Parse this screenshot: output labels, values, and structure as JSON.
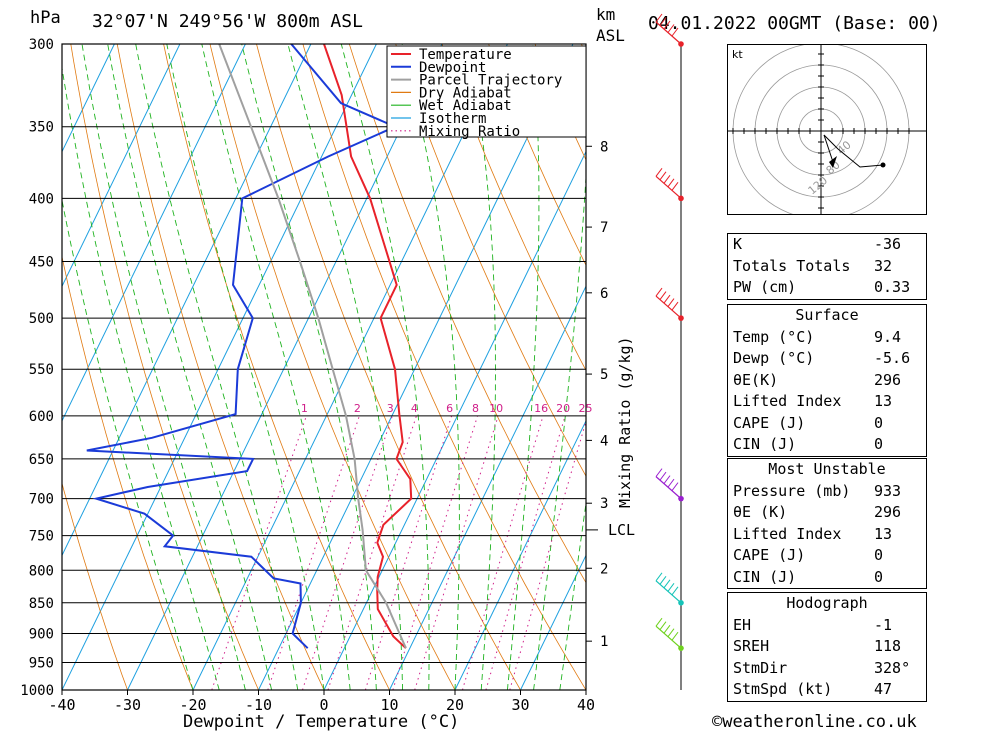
{
  "header": {
    "location": "32°07'N  249°56'W  800m  ASL",
    "datetime": "04.01.2022  00GMT  (Base: 00)",
    "hpa_unit": "hPa",
    "km_unit": "km",
    "asl_unit": "ASL"
  },
  "chart_data": {
    "type": "line",
    "title": "Skew-T log-P sounding",
    "xlabel": "Dewpoint / Temperature (°C)",
    "ylabel": "hPa",
    "mixing_ratio_label": "Mixing Ratio (g/kg)",
    "xlim": [
      -40,
      40
    ],
    "ylim": [
      1000,
      300
    ],
    "x_ticks": [
      "-40",
      "-30",
      "-20",
      "-10",
      "0",
      "10",
      "20",
      "30",
      "40"
    ],
    "x_tick_values": [
      -40,
      -30,
      -20,
      -10,
      0,
      10,
      20,
      30,
      40
    ],
    "pressure_levels": [
      300,
      350,
      400,
      450,
      500,
      550,
      600,
      650,
      700,
      750,
      800,
      850,
      900,
      950,
      1000
    ],
    "km_ticks": [
      {
        "label": "1",
        "p": 913
      },
      {
        "label": "2",
        "p": 797
      },
      {
        "label": "3",
        "p": 706
      },
      {
        "label": "4",
        "p": 628
      },
      {
        "label": "5",
        "p": 555
      },
      {
        "label": "6",
        "p": 477
      },
      {
        "label": "7",
        "p": 422
      },
      {
        "label": "8",
        "p": 363
      }
    ],
    "lcl": {
      "label": "LCL",
      "p": 742
    },
    "mixing_ratio_values": [
      "1",
      "2",
      "3",
      "4",
      "6",
      "8",
      "10",
      "16",
      "20",
      "25"
    ],
    "legend": [
      "Temperature",
      "Dewpoint",
      "Parcel Trajectory",
      "Dry Adiabat",
      "Wet Adiabat",
      "Isotherm",
      "Mixing Ratio"
    ],
    "legend_position": "top-right",
    "series": [
      {
        "name": "Temperature",
        "color": "#e8222a",
        "points": [
          [
            925,
            9.4
          ],
          [
            905,
            6.6
          ],
          [
            860,
            2.2
          ],
          [
            830,
            0.7
          ],
          [
            810,
            -0.2
          ],
          [
            780,
            -0.9
          ],
          [
            760,
            -2.8
          ],
          [
            735,
            -3.2
          ],
          [
            700,
            -0.9
          ],
          [
            675,
            -2.5
          ],
          [
            650,
            -6.1
          ],
          [
            630,
            -6.4
          ],
          [
            598,
            -9.0
          ],
          [
            550,
            -13.0
          ],
          [
            500,
            -19.0
          ],
          [
            470,
            -19.0
          ],
          [
            400,
            -29.5
          ],
          [
            370,
            -35.5
          ],
          [
            330,
            -41.5
          ],
          [
            300,
            -48.0
          ]
        ]
      },
      {
        "name": "Dewpoint",
        "color": "#1b3bd8",
        "points": [
          [
            925,
            -5.6
          ],
          [
            900,
            -9.0
          ],
          [
            850,
            -10.0
          ],
          [
            820,
            -11.5
          ],
          [
            812,
            -16.0
          ],
          [
            780,
            -21.0
          ],
          [
            765,
            -35.0
          ],
          [
            750,
            -34.5
          ],
          [
            720,
            -40.5
          ],
          [
            700,
            -49.0
          ],
          [
            685,
            -42.0
          ],
          [
            665,
            -28.0
          ],
          [
            650,
            -28.0
          ],
          [
            640,
            -54.0
          ],
          [
            625,
            -45.0
          ],
          [
            598,
            -34.0
          ],
          [
            550,
            -37.0
          ],
          [
            500,
            -38.5
          ],
          [
            470,
            -44.0
          ],
          [
            400,
            -49.0
          ],
          [
            370,
            -39.0
          ],
          [
            350,
            -31.0
          ],
          [
            335,
            -41.0
          ],
          [
            300,
            -53.0
          ]
        ]
      },
      {
        "name": "Parcel Trajectory",
        "color": "#a0a0a0",
        "points": [
          [
            925,
            9.4
          ],
          [
            850,
            3.0
          ],
          [
            800,
            -2.5
          ],
          [
            742,
            -6.0
          ],
          [
            700,
            -9.0
          ],
          [
            650,
            -12.5
          ],
          [
            600,
            -17.0
          ],
          [
            550,
            -22.5
          ],
          [
            500,
            -28.5
          ],
          [
            450,
            -35.5
          ],
          [
            400,
            -43.5
          ],
          [
            350,
            -53.0
          ],
          [
            300,
            -64.0
          ]
        ]
      }
    ],
    "wind_barbs": [
      {
        "p": 300,
        "color": "#e8222a"
      },
      {
        "p": 400,
        "color": "#e8222a"
      },
      {
        "p": 500,
        "color": "#e8222a"
      },
      {
        "p": 700,
        "color": "#9a1fd0"
      },
      {
        "p": 850,
        "color": "#15c3b8"
      },
      {
        "p": 925,
        "color": "#6fd21e"
      }
    ],
    "hodograph": {
      "unit": "kt",
      "ring_labels": [
        "40",
        "80",
        "120"
      ]
    }
  },
  "indices": [
    {
      "label": "K",
      "value": "-36"
    },
    {
      "label": "Totals Totals",
      "value": "32"
    },
    {
      "label": "PW (cm)",
      "value": "0.33"
    }
  ],
  "surface": {
    "title": "Surface",
    "rows": [
      {
        "label": "Temp (°C)",
        "value": "9.4"
      },
      {
        "label": "Dewp (°C)",
        "value": "-5.6"
      },
      {
        "label": "θE(K)",
        "value": "296"
      },
      {
        "label": "Lifted Index",
        "value": "13"
      },
      {
        "label": "CAPE (J)",
        "value": "0"
      },
      {
        "label": "CIN (J)",
        "value": "0"
      }
    ]
  },
  "most_unstable": {
    "title": "Most Unstable",
    "rows": [
      {
        "label": "Pressure (mb)",
        "value": "933"
      },
      {
        "label": "θE (K)",
        "value": "296"
      },
      {
        "label": "Lifted Index",
        "value": "13"
      },
      {
        "label": "CAPE (J)",
        "value": "0"
      },
      {
        "label": "CIN (J)",
        "value": "0"
      }
    ]
  },
  "hodograph_table": {
    "title": "Hodograph",
    "rows": [
      {
        "label": "EH",
        "value": "-1"
      },
      {
        "label": "SREH",
        "value": "118"
      },
      {
        "label": "StmDir",
        "value": "328°"
      },
      {
        "label": "StmSpd (kt)",
        "value": "47"
      }
    ]
  },
  "footer": {
    "copyright": "©weatheronline.co.uk"
  },
  "colors": {
    "temperature": "#e8222a",
    "dewpoint": "#1b3bd8",
    "parcel": "#a0a0a0",
    "dry_adiabat": "#e07a12",
    "wet_adiabat": "#1fb31f",
    "isotherm": "#1ea0e0",
    "mixing_ratio": "#d0208a"
  }
}
